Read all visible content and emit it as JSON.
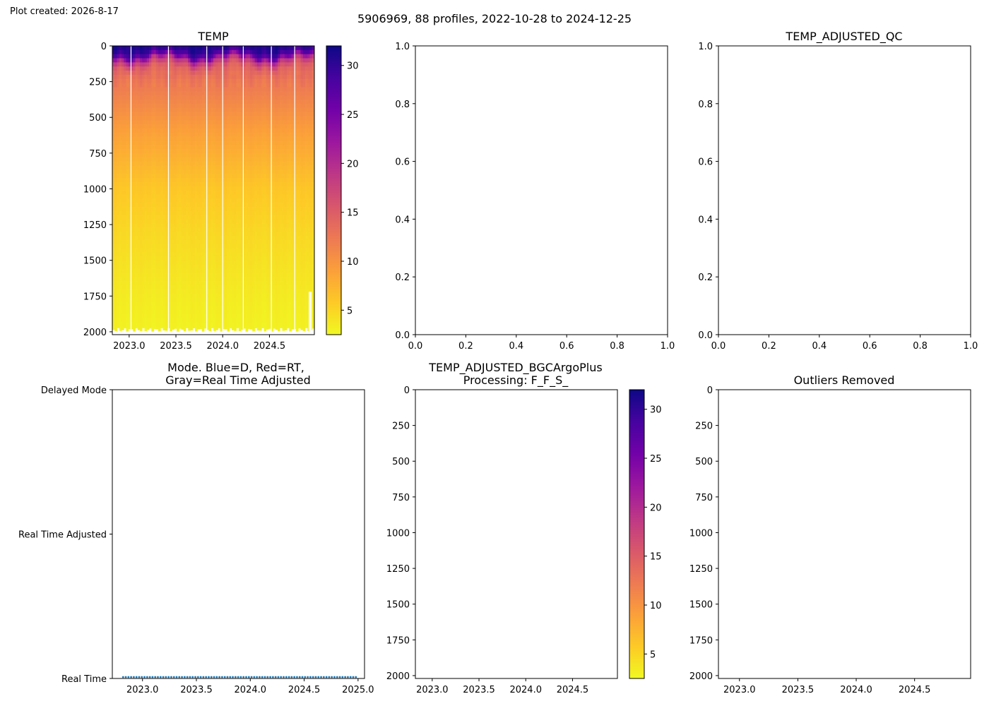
{
  "figure": {
    "created_label": "Plot created: 2026-8-17",
    "suptitle": "5906969, 88 profiles, 2022-10-28 to 2024-12-25"
  },
  "colors": {
    "axis": "#000000",
    "mode_points": "#1f77b4",
    "mode_points_dark": "#2166a0",
    "background": "#ffffff"
  },
  "colormap": {
    "name": "plasma_r",
    "min": 2.5,
    "max": 32,
    "stops": [
      "#f0f921",
      "#fdca26",
      "#fb9f3a",
      "#ed7953",
      "#d8576b",
      "#bd3786",
      "#9c179e",
      "#7201a8",
      "#46039f",
      "#0d0887"
    ]
  },
  "chart_data": [
    {
      "id": "temp",
      "type": "heatmap",
      "title": "TEMP",
      "xlabel": "",
      "ylabel": "",
      "xlim": [
        2022.82,
        2024.98
      ],
      "ylim": [
        2020,
        0
      ],
      "xticks": [
        "2023.0",
        "2023.5",
        "2024.0",
        "2024.5"
      ],
      "xtick_values": [
        2023.0,
        2023.5,
        2024.0,
        2024.5
      ],
      "yticks": [
        "0",
        "250",
        "500",
        "750",
        "1000",
        "1250",
        "1500",
        "1750",
        "2000"
      ],
      "ytick_values": [
        0,
        250,
        500,
        750,
        1000,
        1250,
        1500,
        1750,
        2000
      ],
      "profile_count": 88,
      "date_range": [
        "2022-10-28",
        "2024-12-25"
      ],
      "gap_dates": [
        2023.02,
        2023.42,
        2023.83,
        2024.0,
        2024.22,
        2024.52,
        2024.77
      ],
      "profile_depth_pressure": [
        {
          "depth": 0,
          "temp": 31.0
        },
        {
          "depth": 30,
          "temp": 30.0
        },
        {
          "depth": 60,
          "temp": 27.5
        },
        {
          "depth": 100,
          "temp": 19.0
        },
        {
          "depth": 150,
          "temp": 14.5
        },
        {
          "depth": 250,
          "temp": 12.5
        },
        {
          "depth": 400,
          "temp": 11.0
        },
        {
          "depth": 600,
          "temp": 9.0
        },
        {
          "depth": 800,
          "temp": 7.5
        },
        {
          "depth": 1000,
          "temp": 6.0
        },
        {
          "depth": 1250,
          "temp": 5.0
        },
        {
          "depth": 1500,
          "temp": 4.2
        },
        {
          "depth": 1750,
          "temp": 3.5
        },
        {
          "depth": 2000,
          "temp": 3.0
        }
      ],
      "colorbar": {
        "ticks": [
          "5",
          "10",
          "15",
          "20",
          "25",
          "30"
        ],
        "tick_values": [
          5,
          10,
          15,
          20,
          25,
          30
        ],
        "min": 2.5,
        "max": 32
      }
    },
    {
      "id": "empty-top-middle",
      "type": "scatter",
      "title": "",
      "xlim": [
        0,
        1
      ],
      "ylim": [
        0,
        1
      ],
      "xticks": [
        "0.0",
        "0.2",
        "0.4",
        "0.6",
        "0.8",
        "1.0"
      ],
      "xtick_values": [
        0,
        0.2,
        0.4,
        0.6,
        0.8,
        1.0
      ],
      "yticks": [
        "0.0",
        "0.2",
        "0.4",
        "0.6",
        "0.8",
        "1.0"
      ],
      "ytick_values": [
        0,
        0.2,
        0.4,
        0.6,
        0.8,
        1.0
      ],
      "series": []
    },
    {
      "id": "temp-adjusted-qc",
      "type": "scatter",
      "title": "TEMP_ADJUSTED_QC",
      "xlim": [
        0,
        1
      ],
      "ylim": [
        0,
        1
      ],
      "xticks": [
        "0.0",
        "0.2",
        "0.4",
        "0.6",
        "0.8",
        "1.0"
      ],
      "xtick_values": [
        0,
        0.2,
        0.4,
        0.6,
        0.8,
        1.0
      ],
      "yticks": [
        "0.0",
        "0.2",
        "0.4",
        "0.6",
        "0.8",
        "1.0"
      ],
      "ytick_values": [
        0,
        0.2,
        0.4,
        0.6,
        0.8,
        1.0
      ],
      "series": []
    },
    {
      "id": "mode",
      "type": "scatter",
      "title_lines": [
        "Mode. Blue=D, Red=RT,",
        "Gray=Real Time Adjusted"
      ],
      "xlim": [
        2022.72,
        2025.06
      ],
      "ylim": [
        0,
        2
      ],
      "xticks": [
        "2023.0",
        "2023.5",
        "2024.0",
        "2024.5",
        "2025.0"
      ],
      "xtick_values": [
        2023.0,
        2023.5,
        2024.0,
        2024.5,
        2025.0
      ],
      "yticks": [
        "Real Time",
        "Real Time Adjusted",
        "Delayed Mode"
      ],
      "ytick_values": [
        0,
        1,
        2
      ],
      "series": [
        {
          "mode": "Real Time",
          "start": 2022.82,
          "end": 2024.98,
          "count": 88,
          "value": 0
        }
      ]
    },
    {
      "id": "temp-adjusted-bgc",
      "type": "heatmap",
      "title_lines": [
        "TEMP_ADJUSTED_BGCArgoPlus",
        "Processing: F_F_S_"
      ],
      "xlim": [
        2022.82,
        2024.98
      ],
      "ylim": [
        2020,
        0
      ],
      "xticks": [
        "2023.0",
        "2023.5",
        "2024.0",
        "2024.5"
      ],
      "xtick_values": [
        2023.0,
        2023.5,
        2024.0,
        2024.5
      ],
      "yticks": [
        "0",
        "250",
        "500",
        "750",
        "1000",
        "1250",
        "1500",
        "1750",
        "2000"
      ],
      "ytick_values": [
        0,
        250,
        500,
        750,
        1000,
        1250,
        1500,
        1750,
        2000
      ],
      "colorbar": {
        "ticks": [
          "5",
          "10",
          "15",
          "20",
          "25",
          "30"
        ],
        "tick_values": [
          5,
          10,
          15,
          20,
          25,
          30
        ],
        "min": 2.5,
        "max": 32
      },
      "values": []
    },
    {
      "id": "outliers-removed",
      "type": "heatmap",
      "title": "Outliers Removed",
      "xlim": [
        2022.82,
        2024.98
      ],
      "ylim": [
        2020,
        0
      ],
      "xticks": [
        "2023.0",
        "2023.5",
        "2024.0",
        "2024.5"
      ],
      "xtick_values": [
        2023.0,
        2023.5,
        2024.0,
        2024.5
      ],
      "yticks": [
        "0",
        "250",
        "500",
        "750",
        "1000",
        "1250",
        "1500",
        "1750",
        "2000"
      ],
      "ytick_values": [
        0,
        250,
        500,
        750,
        1000,
        1250,
        1500,
        1750,
        2000
      ],
      "values": []
    }
  ]
}
